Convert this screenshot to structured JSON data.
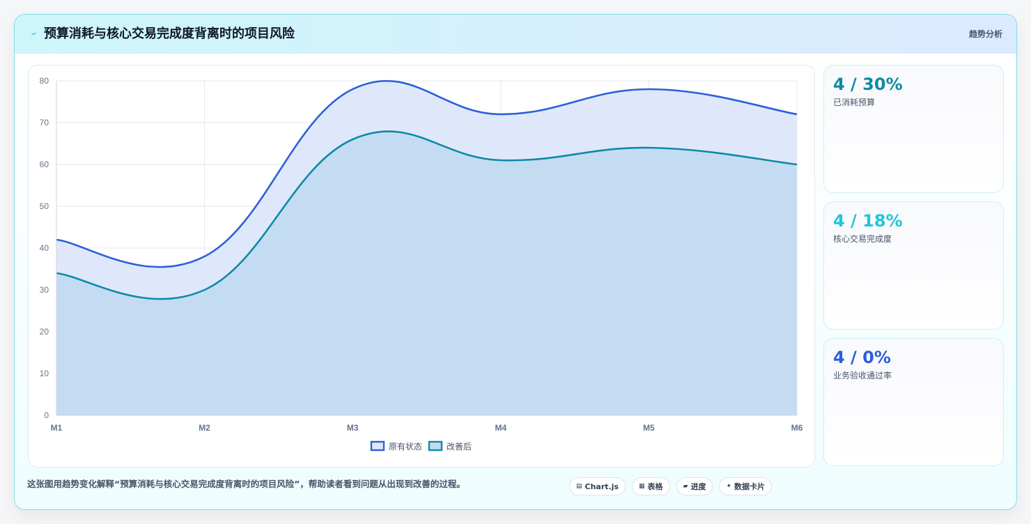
{
  "header": {
    "title": "预算消耗与核心交易完成度背离时的项目风险",
    "tag": "趋势分析"
  },
  "kpis": [
    {
      "value": "4 / 30%",
      "label": "已消耗预算",
      "color": "#0e8aa6"
    },
    {
      "value": "4 / 18%",
      "label": "核心交易完成度",
      "color": "#22c5da"
    },
    {
      "value": "4 / 0%",
      "label": "业务验收通过率",
      "color": "#2b5fd9"
    }
  ],
  "footer": {
    "description": "这张图用趋势变化解释“预算消耗与核心交易完成度背离时的项目风险”，帮助读者看到问题从出现到改善的过程。",
    "pills": [
      {
        "icon": "chart-icon",
        "glyph": "▤",
        "label": "Chart.js"
      },
      {
        "icon": "table-icon",
        "glyph": "▦",
        "label": "表格"
      },
      {
        "icon": "progress-icon",
        "glyph": "▰",
        "label": "进度"
      },
      {
        "icon": "sparkle-icon",
        "glyph": "✦",
        "label": "数据卡片"
      }
    ]
  },
  "chart_data": {
    "type": "area",
    "categories": [
      "M1",
      "M2",
      "M3",
      "M4",
      "M5",
      "M6"
    ],
    "ylim": [
      0,
      80
    ],
    "yticks": [
      0,
      10,
      20,
      30,
      40,
      50,
      60,
      70,
      80
    ],
    "grid": true,
    "legend_position": "bottom",
    "series": [
      {
        "name": "原有状态",
        "values": [
          42,
          38,
          78,
          72,
          78,
          72
        ],
        "color": "#2b5fd9",
        "fill": "#dfe8fb"
      },
      {
        "name": "改善后",
        "values": [
          34,
          30,
          66,
          61,
          64,
          60
        ],
        "color": "#0e8aa6",
        "fill": "#c4dcf2"
      }
    ]
  }
}
